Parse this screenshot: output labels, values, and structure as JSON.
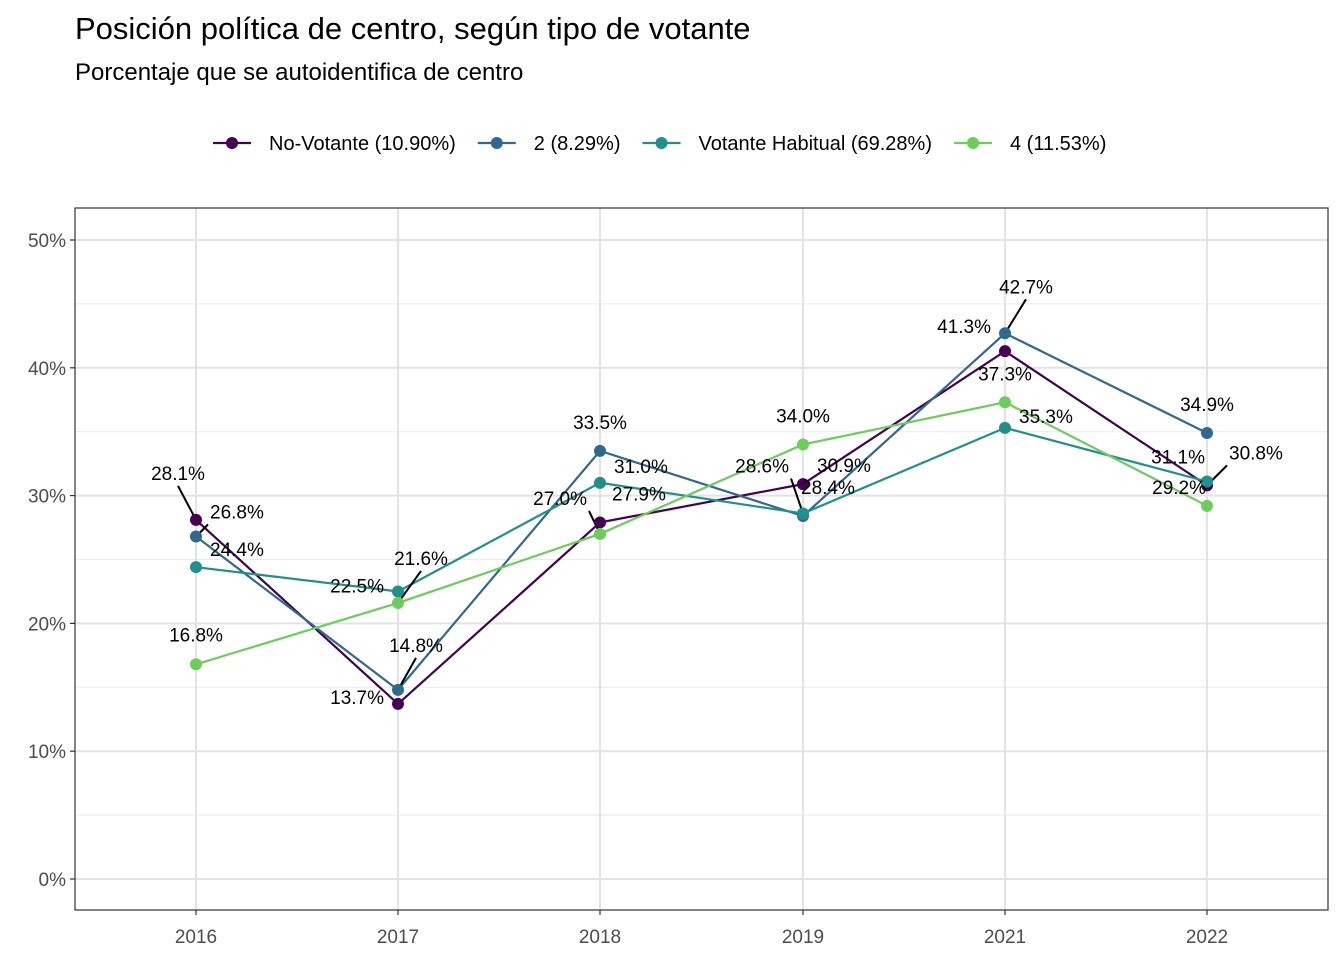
{
  "chart_data": {
    "type": "line",
    "title": "Posición política de centro, según tipo de votante",
    "subtitle": "Porcentaje que se autoidentifica de centro",
    "xlabel": "",
    "ylabel": "",
    "x": [
      "2016",
      "2017",
      "2018",
      "2019",
      "2021",
      "2022"
    ],
    "ylim": [
      0,
      50
    ],
    "y_ticks": [
      "0%",
      "10%",
      "20%",
      "30%",
      "40%",
      "50%"
    ],
    "grid": true,
    "legend_position": "top",
    "series": [
      {
        "name": "No-Votante (10.90%)",
        "color": "#440154",
        "values": [
          28.1,
          13.7,
          27.9,
          30.9,
          41.3,
          30.8
        ],
        "labels": [
          "28.1%",
          "13.7%",
          "27.9%",
          "30.9%",
          "41.3%",
          "30.8%"
        ]
      },
      {
        "name": "2 (8.29%)",
        "color": "#31688e",
        "values": [
          26.8,
          14.8,
          33.5,
          28.4,
          42.7,
          34.9
        ],
        "labels": [
          "26.8%",
          "14.8%",
          "33.5%",
          "28.4%",
          "42.7%",
          "34.9%"
        ]
      },
      {
        "name": "Votante Habitual (69.28%)",
        "color": "#21908c",
        "values": [
          24.4,
          22.5,
          31.0,
          28.6,
          35.3,
          31.1
        ],
        "labels": [
          "24.4%",
          "22.5%",
          "31.0%",
          "28.6%",
          "35.3%",
          "31.1%"
        ]
      },
      {
        "name": "4 (11.53%)",
        "color": "#6ccd5a",
        "values": [
          16.8,
          21.6,
          27.0,
          34.0,
          37.3,
          29.2
        ],
        "labels": [
          "16.8%",
          "21.6%",
          "27.0%",
          "34.0%",
          "37.3%",
          "29.2%"
        ]
      }
    ]
  }
}
